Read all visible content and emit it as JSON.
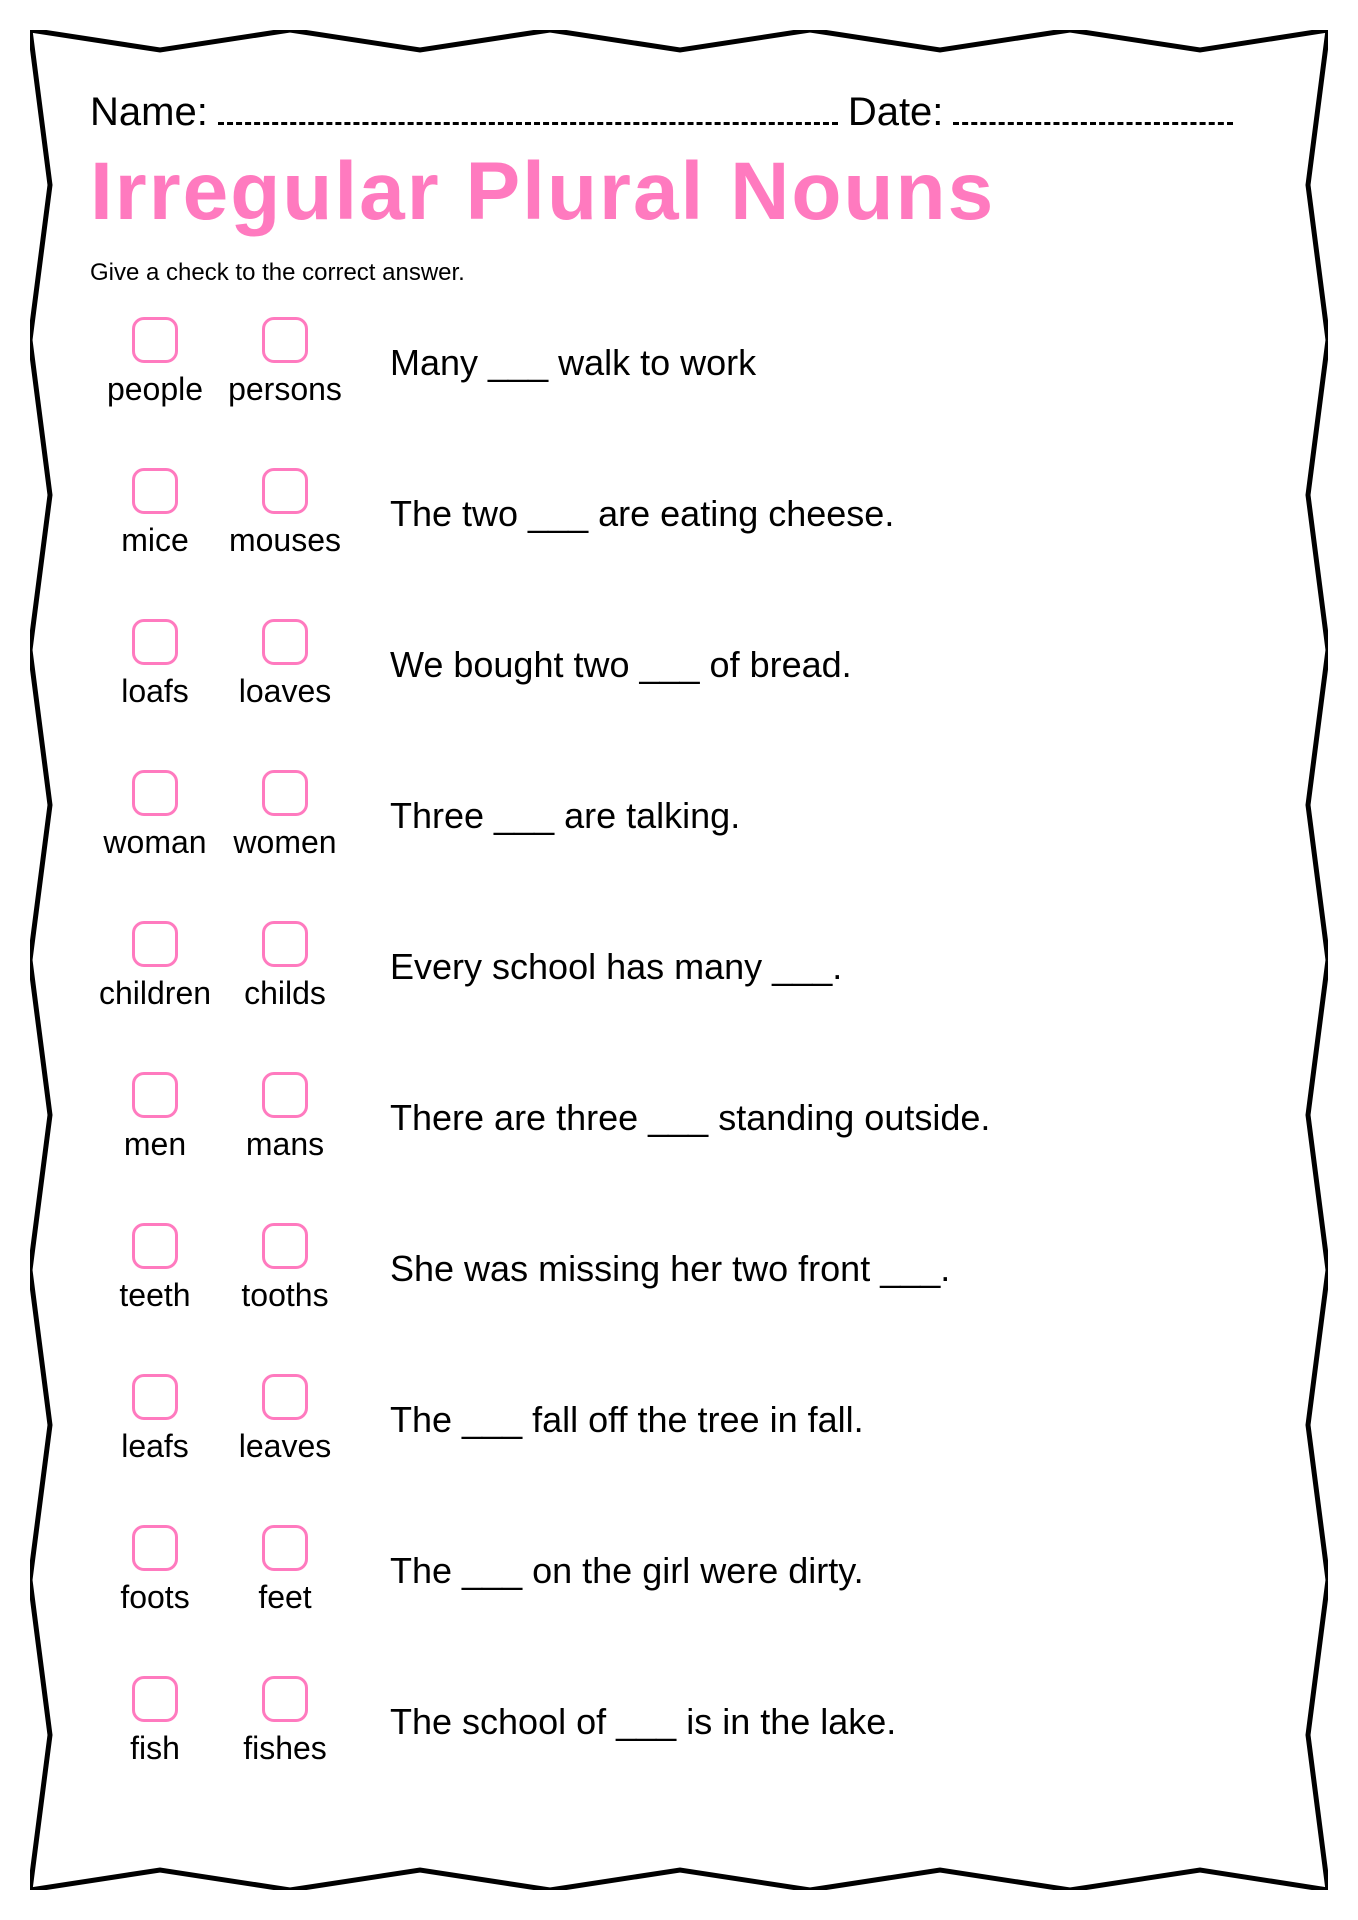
{
  "header": {
    "name_label": "Name:",
    "date_label": "Date:"
  },
  "title": "Irregular Plural Nouns",
  "instructions": "Give a check to the correct answer.",
  "colors": {
    "accent": "#ff7abf",
    "text": "#000000",
    "background": "#ffffff"
  },
  "questions": [
    {
      "option1": "people",
      "option2": "persons",
      "sentence": "Many ___ walk to work"
    },
    {
      "option1": "mice",
      "option2": "mouses",
      "sentence": "The two ___ are eating cheese."
    },
    {
      "option1": "loafs",
      "option2": "loaves",
      "sentence": "We bought two ___ of bread."
    },
    {
      "option1": "woman",
      "option2": "women",
      "sentence": "Three ___ are talking."
    },
    {
      "option1": "children",
      "option2": "childs",
      "sentence": "Every school has many ___."
    },
    {
      "option1": "men",
      "option2": "mans",
      "sentence": "There are three ___ standing outside."
    },
    {
      "option1": "teeth",
      "option2": "tooths",
      "sentence": "She was missing her two front  ___."
    },
    {
      "option1": "leafs",
      "option2": "leaves",
      "sentence": "The ___ fall off the tree in fall."
    },
    {
      "option1": "foots",
      "option2": "feet",
      "sentence": "The ___ on the girl were dirty."
    },
    {
      "option1": "fish",
      "option2": "fishes",
      "sentence": "The school of ___ is in the lake."
    }
  ]
}
